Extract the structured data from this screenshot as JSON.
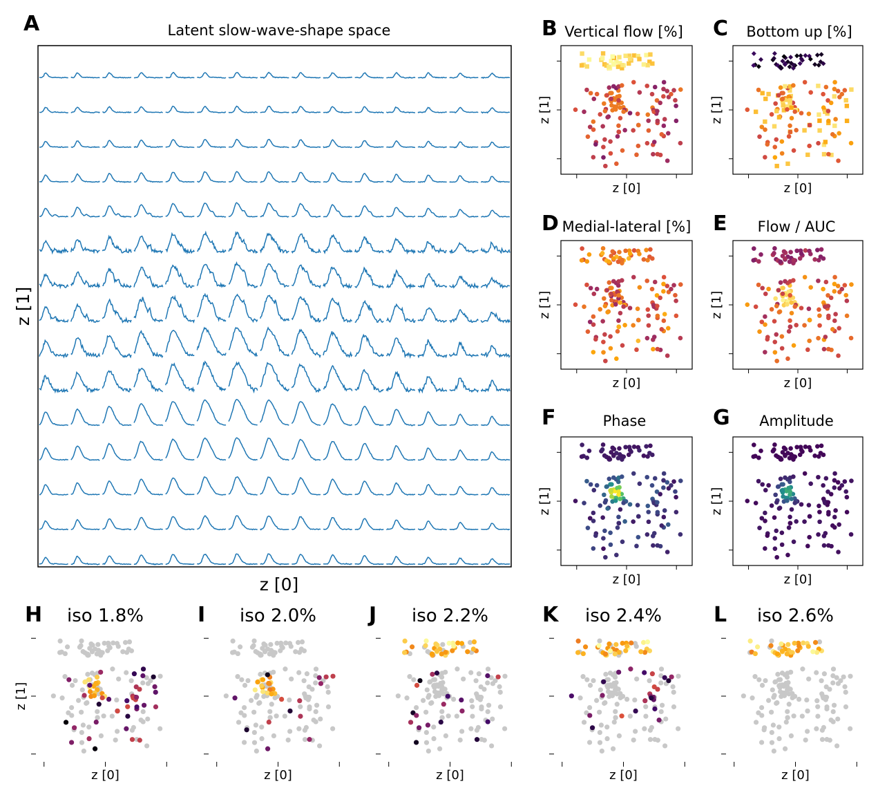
{
  "figure": {
    "panelA": {
      "letter": "A",
      "title": "Latent slow-wave-shape space",
      "xlabel": "z [0]",
      "ylabel": "z [1]",
      "trace_color": "#1f77b4"
    },
    "scatter_panels": [
      {
        "letter": "B",
        "title": "Vertical flow [%]",
        "xlabel": "z [0]",
        "ylabel": "z [1]",
        "colormap": "inferno"
      },
      {
        "letter": "C",
        "title": "Bottom up [%]",
        "xlabel": "z [0]",
        "ylabel": "z [1]",
        "colormap": "inferno"
      },
      {
        "letter": "D",
        "title": "Medial-lateral [%]",
        "xlabel": "z [0]",
        "ylabel": "z [1]",
        "colormap": "inferno"
      },
      {
        "letter": "E",
        "title": "Flow / AUC",
        "xlabel": "z [0]",
        "ylabel": "z [1]",
        "colormap": "inferno"
      },
      {
        "letter": "F",
        "title": "Phase",
        "xlabel": "z [0]",
        "ylabel": "z [1]",
        "colormap": "viridis"
      },
      {
        "letter": "G",
        "title": "Amplitude",
        "xlabel": "z [0]",
        "ylabel": "z [1]",
        "colormap": "viridis"
      }
    ],
    "iso_panels": [
      {
        "letter": "H",
        "title": "iso 1.8%",
        "xlabel": "z [0]",
        "ylabel": "z [1]"
      },
      {
        "letter": "I",
        "title": "iso 2.0%",
        "xlabel": "z [0]",
        "ylabel": ""
      },
      {
        "letter": "J",
        "title": "iso 2.2%",
        "xlabel": "z [0]",
        "ylabel": ""
      },
      {
        "letter": "K",
        "title": "iso 2.4%",
        "xlabel": "z [0]",
        "ylabel": ""
      },
      {
        "letter": "L",
        "title": "iso 2.6%",
        "xlabel": "z [0]",
        "ylabel": ""
      }
    ],
    "background_point_color": "#c8c8c8"
  },
  "chart_data": [
    {
      "type": "line",
      "panel": "A",
      "title": "Latent slow-wave-shape space",
      "xlabel": "z [0]",
      "ylabel": "z [1]",
      "grid": {
        "rows": 15,
        "cols": 15
      },
      "description_of_marks": "15 x 15 grid of decoded slow-wave shapes; peak height grows toward the centre-lower region"
    },
    {
      "type": "scatter",
      "panel": "B",
      "title": "Vertical flow [%]",
      "xlabel": "z [0]",
      "ylabel": "z [1]",
      "colormap": "inferno"
    },
    {
      "type": "scatter",
      "panel": "C",
      "title": "Bottom up [%]",
      "xlabel": "z [0]",
      "ylabel": "z [1]",
      "colormap": "inferno"
    },
    {
      "type": "scatter",
      "panel": "D",
      "title": "Medial-lateral [%]",
      "xlabel": "z [0]",
      "ylabel": "z [1]",
      "colormap": "inferno"
    },
    {
      "type": "scatter",
      "panel": "E",
      "title": "Flow / AUC",
      "xlabel": "z [0]",
      "ylabel": "z [1]",
      "colormap": "inferno"
    },
    {
      "type": "scatter",
      "panel": "F",
      "title": "Phase",
      "xlabel": "z [0]",
      "ylabel": "z [1]",
      "colormap": "viridis"
    },
    {
      "type": "scatter",
      "panel": "G",
      "title": "Amplitude",
      "xlabel": "z [0]",
      "ylabel": "z [1]",
      "colormap": "viridis"
    },
    {
      "type": "scatter",
      "panel": "H",
      "title": "iso 1.8%",
      "xlabel": "z [0]",
      "ylabel": "z [1]"
    },
    {
      "type": "scatter",
      "panel": "I",
      "title": "iso 2.0%",
      "xlabel": "z [0]"
    },
    {
      "type": "scatter",
      "panel": "J",
      "title": "iso 2.2%",
      "xlabel": "z [0]"
    },
    {
      "type": "scatter",
      "panel": "K",
      "title": "iso 2.4%",
      "xlabel": "z [0]"
    },
    {
      "type": "scatter",
      "panel": "L",
      "title": "iso 2.6%",
      "xlabel": "z [0]"
    }
  ]
}
